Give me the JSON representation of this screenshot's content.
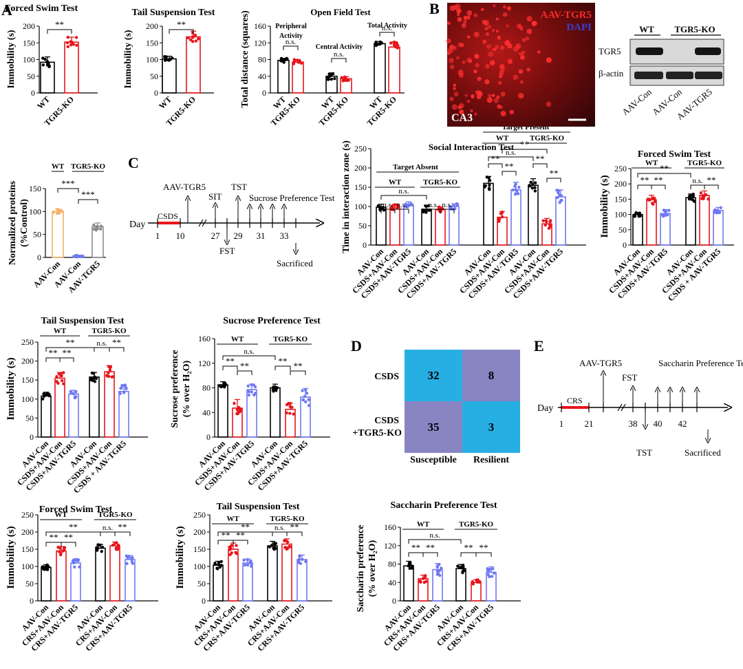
{
  "colors": {
    "black": "#000000",
    "red": "#e8141b",
    "blue": "#6f78f2",
    "orange": "#f6b06b",
    "gray": "#8c8c8c",
    "teal": "#27aee2",
    "purple": "#8985c3"
  },
  "panel_letters": {
    "A": "A",
    "B": "B",
    "C": "C",
    "D": "D",
    "E": "E"
  },
  "chart_data": [
    {
      "id": "A1",
      "type": "bar",
      "title": "Forced Swim Test",
      "ylabel": "Immobility (s)",
      "ylim": [
        0,
        200
      ],
      "yticks": [
        0,
        50,
        100,
        150,
        200
      ],
      "categories": [
        "WT",
        "TGR5-KO"
      ],
      "values": [
        92,
        152
      ],
      "errors": [
        16,
        15
      ],
      "colors": [
        "black",
        "red"
      ],
      "sig": [
        {
          "label": "**"
        }
      ]
    },
    {
      "id": "A2",
      "type": "bar",
      "title": "Tail Suspension Test",
      "ylabel": "Immobility (s)",
      "ylim": [
        0,
        200
      ],
      "yticks": [
        0,
        50,
        100,
        150,
        200
      ],
      "categories": [
        "WT",
        "TGR5-KO"
      ],
      "values": [
        102,
        168
      ],
      "errors": [
        8,
        17
      ],
      "colors": [
        "black",
        "red"
      ],
      "sig": [
        {
          "label": "**"
        }
      ]
    },
    {
      "id": "A3",
      "type": "bar",
      "title": "Open Field Test",
      "ylabel": "Total distance (squares)",
      "ylim": [
        0,
        160
      ],
      "yticks": [
        0,
        40,
        80,
        120,
        160
      ],
      "categories": [
        "WT",
        "TGR5-KO",
        "WT",
        "TGR5-KO",
        "WT",
        "TGR5-KO"
      ],
      "values": [
        78,
        74,
        40,
        34,
        118,
        110
      ],
      "errors": [
        5,
        6,
        8,
        5,
        5,
        12
      ],
      "colors": [
        "black",
        "red",
        "black",
        "red",
        "black",
        "red"
      ],
      "groups": [
        "Peripheral Activity",
        "Central Activity",
        "Total Activity"
      ],
      "sig": [
        {
          "label": "n.s."
        },
        {
          "label": "n.s."
        },
        {
          "label": "n.s."
        }
      ]
    },
    {
      "id": "B",
      "type": "bar",
      "title": "",
      "ylabel": "Normalized proteins (%Control)",
      "ylim": [
        0,
        150
      ],
      "yticks": [
        0,
        50,
        100,
        150
      ],
      "categories": [
        "AAV-Con",
        "AAV-Con",
        "AAV-TGR5"
      ],
      "values": [
        100,
        3,
        67
      ],
      "errors": [
        5,
        2,
        8
      ],
      "colors": [
        "orange",
        "blue",
        "gray"
      ],
      "headers": [
        "WT",
        "TGR5-KO"
      ],
      "sig": [
        {
          "label": "***"
        },
        {
          "label": "***"
        }
      ]
    },
    {
      "id": "C1",
      "type": "bar",
      "title": "Social Interaction Test",
      "ylabel": "Time in interaction zone (s)",
      "ylim": [
        0,
        250
      ],
      "yticks": [
        0,
        50,
        100,
        150,
        200,
        250
      ],
      "categories": [
        "AAV-Con",
        "CSDS+AAV-Con",
        "CSDS+AAV-TGR5",
        "AAV-Con",
        "CSDS+AAV-Con",
        "CSDS+AAV-TGR5",
        "AAV-Con",
        "CSDS+AAV-Con",
        "CSDS+AAV-TGR5",
        "AAV-Con",
        "CSDS+AAV-Con",
        "CSDS+AAV-TGR5"
      ],
      "values": [
        98,
        97,
        102,
        93,
        92,
        100,
        160,
        72,
        143,
        155,
        55,
        125
      ],
      "errors": [
        8,
        8,
        10,
        10,
        7,
        7,
        18,
        15,
        20,
        17,
        14,
        18
      ],
      "colors": [
        "black",
        "red",
        "blue",
        "black",
        "red",
        "blue",
        "black",
        "red",
        "blue",
        "black",
        "red",
        "blue"
      ],
      "group_titles": [
        "Target Absent",
        "Target Present"
      ],
      "headers": [
        "WT",
        "TGR5-KO",
        "WT",
        "TGR5-KO"
      ],
      "sig": [
        {
          "label": "n.s."
        },
        {
          "label": "n.s."
        },
        {
          "label": "n.s."
        },
        {
          "label": "n.s."
        },
        {
          "label": "n.s."
        },
        {
          "label": "**"
        },
        {
          "label": "**"
        },
        {
          "label": "n.s."
        },
        {
          "label": "**"
        },
        {
          "label": "**"
        },
        {
          "label": "**"
        }
      ]
    },
    {
      "id": "C2",
      "type": "bar",
      "title": "Forced Swim Test",
      "ylabel": "Immobility (s)",
      "ylim": [
        0,
        250
      ],
      "yticks": [
        0,
        50,
        100,
        150,
        200,
        250
      ],
      "categories": [
        "AAV-Con",
        "CSDS+AAV-Con",
        "CSDS+AAV-TGR5",
        "AAV-Con",
        "CSDS+AAV-Con",
        "CSDS + AAV-TGR5"
      ],
      "values": [
        100,
        148,
        103,
        155,
        162,
        113
      ],
      "errors": [
        6,
        15,
        13,
        12,
        15,
        10
      ],
      "colors": [
        "black",
        "red",
        "blue",
        "black",
        "red",
        "blue"
      ],
      "headers": [
        "WT",
        "TGR5-KO"
      ],
      "sig": [
        {
          "label": "**"
        },
        {
          "label": "**"
        },
        {
          "label": "**"
        },
        {
          "label": "n.s."
        },
        {
          "label": "**"
        }
      ]
    },
    {
      "id": "C3",
      "type": "bar",
      "title": "Tail Suspension Test",
      "ylabel": "Immobility (s)",
      "ylim": [
        0,
        250
      ],
      "yticks": [
        0,
        50,
        100,
        150,
        200,
        250
      ],
      "categories": [
        "AAV-Con",
        "CSDS+AAV-Con",
        "CSDS+AAV-TGR5",
        "AAV-Con",
        "CSDS+AAV-Con",
        "CSDS + AAV-TGR5"
      ],
      "values": [
        108,
        155,
        113,
        158,
        172,
        120
      ],
      "errors": [
        10,
        15,
        10,
        12,
        16,
        18
      ],
      "colors": [
        "black",
        "red",
        "blue",
        "black",
        "red",
        "blue"
      ],
      "headers": [
        "WT",
        "TGR5-KO"
      ],
      "sig": [
        {
          "label": "**"
        },
        {
          "label": "**"
        },
        {
          "label": "**"
        },
        {
          "label": "n.s."
        },
        {
          "label": "**"
        }
      ]
    },
    {
      "id": "C4",
      "type": "bar",
      "title": "Sucrose Preference Test",
      "ylabel": "Sucrose preference (% over H₂O)",
      "ylim": [
        0,
        160
      ],
      "yticks": [
        0,
        40,
        80,
        120,
        160
      ],
      "categories": [
        "AAV-Con",
        "CSDS+AAV-Con",
        "CSDS+AAV-TGR5",
        "AAV-Con",
        "CSDS+AAV-Con",
        "CSDS+AAV-TGR5"
      ],
      "values": [
        85,
        47,
        77,
        80,
        45,
        65
      ],
      "errors": [
        5,
        14,
        9,
        6,
        10,
        14
      ],
      "colors": [
        "black",
        "red",
        "blue",
        "black",
        "red",
        "blue"
      ],
      "headers": [
        "WT",
        "TGR5-KO"
      ],
      "sig": [
        {
          "label": "**"
        },
        {
          "label": "**"
        },
        {
          "label": "n.s."
        },
        {
          "label": "**"
        },
        {
          "label": "**"
        }
      ]
    },
    {
      "id": "D",
      "type": "heatmap",
      "rows": [
        "CSDS",
        "CSDS +TGR5-KO"
      ],
      "cols": [
        "Susceptible",
        "Resilient"
      ],
      "values": [
        [
          32,
          8
        ],
        [
          35,
          3
        ]
      ]
    },
    {
      "id": "E1",
      "type": "bar",
      "title": "Forced Swim Test",
      "ylabel": "Immobility (s)",
      "ylim": [
        0,
        250
      ],
      "yticks": [
        0,
        50,
        100,
        150,
        200,
        250
      ],
      "categories": [
        "AAV-Con",
        "CRS+AAV-Con",
        "CRS+AAV-TGR5",
        "AAV-Con",
        "CRS+AAV-Con",
        "CRS+AAV-TGR5"
      ],
      "values": [
        97,
        145,
        110,
        153,
        160,
        120
      ],
      "errors": [
        8,
        13,
        12,
        11,
        11,
        12
      ],
      "colors": [
        "black",
        "red",
        "blue",
        "black",
        "red",
        "blue"
      ],
      "headers": [
        "WT",
        "TGR5-KO"
      ],
      "sig": [
        {
          "label": "**"
        },
        {
          "label": "**"
        },
        {
          "label": "**"
        },
        {
          "label": "n.s."
        },
        {
          "label": "**"
        }
      ]
    },
    {
      "id": "E2",
      "type": "bar",
      "title": "Tail Suspension Test",
      "ylabel": "Immobility (s)",
      "ylim": [
        0,
        250
      ],
      "yticks": [
        0,
        50,
        100,
        150,
        200,
        250
      ],
      "categories": [
        "AAV-Con",
        "CRS+AAV-Con",
        "CRS+AAV-TGR5",
        "AAV-Con",
        "CRS+AAV-Con",
        "CRS+AAV-TGR5"
      ],
      "values": [
        104,
        150,
        110,
        160,
        165,
        120
      ],
      "errors": [
        11,
        18,
        12,
        13,
        15,
        13
      ],
      "colors": [
        "black",
        "red",
        "blue",
        "black",
        "red",
        "blue"
      ],
      "headers": [
        "WT",
        "TGR5-KO"
      ],
      "sig": [
        {
          "label": "**"
        },
        {
          "label": "**"
        },
        {
          "label": "**"
        },
        {
          "label": "n.s."
        },
        {
          "label": "**"
        }
      ]
    },
    {
      "id": "E3",
      "type": "bar",
      "title": "Saccharin Preference Test",
      "ylabel": "Saccharin preference (% over H₂O)",
      "ylim": [
        0,
        160
      ],
      "yticks": [
        0,
        40,
        80,
        120,
        160
      ],
      "categories": [
        "AAV-Con",
        "CRS+AAV-Con",
        "CRS+AAV-TGR5",
        "AAV-Con",
        "CRS+AAV-Con",
        "CRS+AAV-TGR5"
      ],
      "values": [
        76,
        48,
        68,
        70,
        40,
        62
      ],
      "errors": [
        10,
        8,
        13,
        9,
        6,
        12
      ],
      "colors": [
        "black",
        "red",
        "blue",
        "black",
        "red",
        "blue"
      ],
      "headers": [
        "WT",
        "TGR5-KO"
      ],
      "sig": [
        {
          "label": "**"
        },
        {
          "label": "**"
        },
        {
          "label": "n.s."
        },
        {
          "label": "**"
        },
        {
          "label": "**"
        }
      ]
    }
  ],
  "micrograph": {
    "title": "AAV-TGR5",
    "stain": "DAPI",
    "region": "CA3"
  },
  "western": {
    "headers": [
      "WT",
      "TGR5-KO"
    ],
    "rows": [
      "TGR5",
      "β-actin"
    ],
    "lanes": [
      "AAV-Con",
      "AAV-Con",
      "AAV-TGR5"
    ]
  },
  "timeline_C": {
    "axis_label": "Day",
    "bar_label": "CSDS",
    "ticks": [
      "1",
      "10",
      "27",
      "29",
      "31",
      "33"
    ],
    "above": [
      "AAV-TGR5",
      "SIT",
      "TST",
      "Sucrose Preference Test"
    ],
    "below": [
      "FST",
      "Sacrificed"
    ]
  },
  "timeline_E": {
    "axis_label": "Day",
    "bar_label": "CRS",
    "ticks": [
      "1",
      "21",
      "38",
      "40",
      "42"
    ],
    "above": [
      "AAV-TGR5",
      "FST",
      "Saccharin Preference Test"
    ],
    "below": [
      "TST",
      "Sacrificed"
    ]
  }
}
